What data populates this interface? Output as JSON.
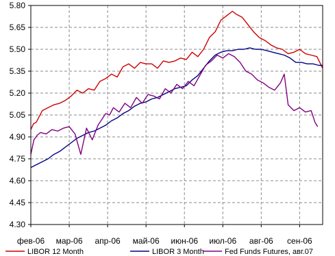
{
  "chart_data": {
    "type": "line",
    "title": "",
    "xlabel": "",
    "ylabel": "",
    "ylim": [
      4.3,
      5.8
    ],
    "yticks": [
      "5.80",
      "5.65",
      "5.50",
      "5.35",
      "5.20",
      "5.05",
      "4.90",
      "4.75",
      "4.60",
      "4.45",
      "4.30"
    ],
    "xticks": [
      "фев-06",
      "мар-06",
      "апр-06",
      "май-06",
      "июн-06",
      "июл-06",
      "авг-06",
      "сен-06"
    ],
    "grid": true,
    "legend": "bottom",
    "colors": {
      "libor12": "#cc0000",
      "libor3": "#000080",
      "fedfunds": "#800080",
      "grid": "#8a8a8a"
    },
    "series": [
      {
        "name": "LIBOR 12 Month",
        "key": "libor12",
        "x": [
          0,
          0.07,
          0.14,
          0.2,
          0.3,
          0.45,
          0.6,
          0.75,
          0.9,
          1.05,
          1.2,
          1.35,
          1.5,
          1.65,
          1.8,
          1.95,
          2.1,
          2.25,
          2.4,
          2.55,
          2.7,
          2.85,
          3.0,
          3.15,
          3.3,
          3.45,
          3.6,
          3.75,
          3.9,
          4.05,
          4.2,
          4.35,
          4.5,
          4.65,
          4.8,
          4.95,
          5.05,
          5.15,
          5.25,
          5.35,
          5.5,
          5.65,
          5.8,
          5.95,
          6.1,
          6.25,
          6.4,
          6.55,
          6.7,
          6.85,
          7.0,
          7.15,
          7.3,
          7.45,
          7.6
        ],
        "values": [
          4.95,
          4.99,
          5.0,
          5.03,
          5.08,
          5.1,
          5.12,
          5.13,
          5.15,
          5.18,
          5.22,
          5.2,
          5.23,
          5.22,
          5.28,
          5.3,
          5.33,
          5.31,
          5.38,
          5.4,
          5.37,
          5.41,
          5.4,
          5.4,
          5.37,
          5.42,
          5.41,
          5.42,
          5.44,
          5.43,
          5.48,
          5.45,
          5.5,
          5.58,
          5.62,
          5.7,
          5.72,
          5.74,
          5.76,
          5.74,
          5.72,
          5.67,
          5.62,
          5.58,
          5.56,
          5.53,
          5.51,
          5.5,
          5.47,
          5.48,
          5.5,
          5.47,
          5.46,
          5.45,
          5.37
        ]
      },
      {
        "name": "LIBOR 3 Month",
        "key": "libor3",
        "x": [
          0,
          0.15,
          0.3,
          0.45,
          0.6,
          0.75,
          0.9,
          1.05,
          1.2,
          1.35,
          1.5,
          1.65,
          1.8,
          1.95,
          2.1,
          2.25,
          2.4,
          2.55,
          2.7,
          2.85,
          3.0,
          3.15,
          3.3,
          3.45,
          3.6,
          3.75,
          3.9,
          4.05,
          4.2,
          4.35,
          4.5,
          4.65,
          4.8,
          4.95,
          5.1,
          5.25,
          5.4,
          5.55,
          5.7,
          5.85,
          6.0,
          6.15,
          6.3,
          6.45,
          6.6,
          6.75,
          6.9,
          7.05,
          7.2,
          7.35,
          7.5,
          7.6
        ],
        "values": [
          4.69,
          4.71,
          4.73,
          4.75,
          4.78,
          4.8,
          4.83,
          4.86,
          4.89,
          4.91,
          4.93,
          4.94,
          4.96,
          4.98,
          5.01,
          5.03,
          5.06,
          5.08,
          5.11,
          5.13,
          5.14,
          5.16,
          5.17,
          5.19,
          5.21,
          5.23,
          5.24,
          5.25,
          5.29,
          5.32,
          5.37,
          5.42,
          5.46,
          5.48,
          5.49,
          5.49,
          5.5,
          5.5,
          5.51,
          5.5,
          5.5,
          5.49,
          5.48,
          5.47,
          5.46,
          5.44,
          5.41,
          5.41,
          5.4,
          5.4,
          5.39,
          5.39
        ]
      },
      {
        "name": "Fed Funds Futures, авг.07",
        "key": "fedfunds",
        "x": [
          0,
          0.08,
          0.16,
          0.25,
          0.4,
          0.55,
          0.7,
          0.85,
          1.0,
          1.15,
          1.3,
          1.45,
          1.6,
          1.75,
          1.85,
          1.95,
          2.05,
          2.15,
          2.3,
          2.45,
          2.6,
          2.75,
          2.9,
          3.05,
          3.2,
          3.35,
          3.5,
          3.65,
          3.8,
          3.95,
          4.1,
          4.25,
          4.4,
          4.55,
          4.7,
          4.85,
          5.0,
          5.15,
          5.3,
          5.45,
          5.6,
          5.75,
          5.9,
          6.05,
          6.2,
          6.35,
          6.5,
          6.6,
          6.7,
          6.85,
          7.0,
          7.15,
          7.3,
          7.4,
          7.47
        ],
        "values": [
          4.78,
          4.88,
          4.91,
          4.93,
          4.92,
          4.95,
          4.94,
          4.96,
          4.97,
          4.92,
          4.78,
          4.96,
          4.88,
          4.98,
          5.02,
          5.06,
          5.05,
          5.1,
          5.07,
          5.13,
          5.1,
          5.17,
          5.13,
          5.19,
          5.18,
          5.16,
          5.23,
          5.2,
          5.26,
          5.23,
          5.28,
          5.25,
          5.32,
          5.39,
          5.42,
          5.46,
          5.44,
          5.47,
          5.45,
          5.41,
          5.35,
          5.33,
          5.29,
          5.27,
          5.24,
          5.22,
          5.27,
          5.33,
          5.12,
          5.08,
          5.1,
          5.07,
          5.08,
          5.0,
          4.97
        ]
      }
    ]
  }
}
